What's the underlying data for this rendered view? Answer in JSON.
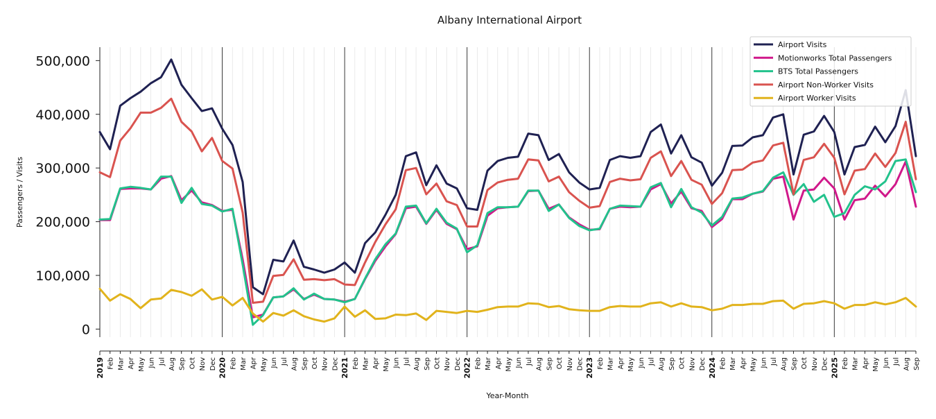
{
  "chart_data": {
    "type": "line",
    "title": "Albany International Airport",
    "xlabel": "Year-Month",
    "ylabel": "Passengers / Visits",
    "ylim": [
      -15000,
      525000
    ],
    "y_ticks": [
      0,
      100000,
      200000,
      300000,
      400000,
      500000
    ],
    "y_tick_labels": [
      "0",
      "100,000",
      "200,000",
      "300,000",
      "400,000",
      "500,000"
    ],
    "legend_position": "top-right",
    "grid": "vertical monthly gridlines, darker lines at year starts",
    "x": [
      "2019-01",
      "2019-02",
      "2019-03",
      "2019-04",
      "2019-05",
      "2019-06",
      "2019-07",
      "2019-08",
      "2019-09",
      "2019-10",
      "2019-11",
      "2019-12",
      "2020-01",
      "2020-02",
      "2020-03",
      "2020-04",
      "2020-05",
      "2020-06",
      "2020-07",
      "2020-08",
      "2020-09",
      "2020-10",
      "2020-11",
      "2020-12",
      "2021-01",
      "2021-02",
      "2021-03",
      "2021-04",
      "2021-05",
      "2021-06",
      "2021-07",
      "2021-08",
      "2021-09",
      "2021-10",
      "2021-11",
      "2021-12",
      "2022-01",
      "2022-02",
      "2022-03",
      "2022-04",
      "2022-05",
      "2022-06",
      "2022-07",
      "2022-08",
      "2022-09",
      "2022-10",
      "2022-11",
      "2022-12",
      "2023-01",
      "2023-02",
      "2023-03",
      "2023-04",
      "2023-05",
      "2023-06",
      "2023-07",
      "2023-08",
      "2023-09",
      "2023-10",
      "2023-11",
      "2023-12",
      "2024-01",
      "2024-02",
      "2024-03",
      "2024-04",
      "2024-05",
      "2024-06",
      "2024-07",
      "2024-08",
      "2024-09",
      "2024-10",
      "2024-11",
      "2024-12",
      "2025-01",
      "2025-02",
      "2025-03",
      "2025-04",
      "2025-05",
      "2025-06",
      "2025-07",
      "2025-08",
      "2025-09"
    ],
    "tick_labels": [
      "2019",
      "Feb",
      "Mar",
      "Apr",
      "May",
      "Jun",
      "Jul",
      "Aug",
      "Sep",
      "Oct",
      "Nov",
      "Dec",
      "2020",
      "Feb",
      "Mar",
      "Apr",
      "May",
      "Jun",
      "Jul",
      "Aug",
      "Sep",
      "Oct",
      "Nov",
      "Dec",
      "2021",
      "Feb",
      "Mar",
      "Apr",
      "May",
      "Jun",
      "Jul",
      "Aug",
      "Sep",
      "Oct",
      "Nov",
      "Dec",
      "2022",
      "Feb",
      "Mar",
      "Apr",
      "May",
      "Jun",
      "Jul",
      "Aug",
      "Sep",
      "Oct",
      "Nov",
      "Dec",
      "2023",
      "Feb",
      "Mar",
      "Apr",
      "May",
      "Jun",
      "Jul",
      "Aug",
      "Sep",
      "Oct",
      "Nov",
      "Dec",
      "2024",
      "Feb",
      "Mar",
      "Apr",
      "May",
      "Jun",
      "Jul",
      "Aug",
      "Sep",
      "Oct",
      "Nov",
      "Dec",
      "2025",
      "Feb",
      "Mar",
      "Apr",
      "May",
      "Jun",
      "Jul",
      "Aug",
      "Sep"
    ],
    "series": [
      {
        "name": "Airport Visits",
        "color": "#1f2152",
        "values": [
          367000,
          335000,
          416000,
          430000,
          442000,
          458000,
          469000,
          502000,
          455000,
          430000,
          406000,
          411000,
          373000,
          343000,
          274000,
          78000,
          65000,
          129000,
          126000,
          165000,
          116000,
          111000,
          105000,
          111000,
          124000,
          105000,
          160000,
          180000,
          213000,
          250000,
          322000,
          329000,
          268000,
          305000,
          271000,
          262000,
          225000,
          222000,
          295000,
          313000,
          319000,
          321000,
          364000,
          361000,
          315000,
          326000,
          292000,
          273000,
          260000,
          263000,
          315000,
          322000,
          319000,
          322000,
          367000,
          381000,
          327000,
          361000,
          320000,
          310000,
          267000,
          291000,
          341000,
          342000,
          357000,
          361000,
          394000,
          400000,
          288000,
          362000,
          368000,
          397000,
          367000,
          288000,
          339000,
          343000,
          377000,
          348000,
          378000,
          445000,
          322000
        ]
      },
      {
        "name": "Motionworks Total Passengers",
        "color": "#d0188a",
        "values": [
          203000,
          203000,
          261000,
          262000,
          262000,
          260000,
          280000,
          285000,
          240000,
          258000,
          236000,
          231000,
          220000,
          222000,
          130000,
          22000,
          27000,
          59000,
          61000,
          74000,
          56000,
          64000,
          56000,
          55000,
          51000,
          56000,
          93000,
          127000,
          154000,
          177000,
          225000,
          228000,
          196000,
          222000,
          196000,
          186000,
          149000,
          154000,
          211000,
          225000,
          227000,
          228000,
          257000,
          258000,
          224000,
          232000,
          208000,
          195000,
          185000,
          186000,
          224000,
          228000,
          227000,
          228000,
          260000,
          270000,
          234000,
          256000,
          225000,
          220000,
          190000,
          205000,
          242000,
          242000,
          252000,
          256000,
          280000,
          284000,
          204000,
          258000,
          260000,
          282000,
          262000,
          204000,
          240000,
          243000,
          267000,
          247000,
          270000,
          312000,
          228000
        ]
      },
      {
        "name": "BTS Total Passengers",
        "color": "#22c28c",
        "values": [
          204000,
          205000,
          262000,
          265000,
          263000,
          260000,
          284000,
          284000,
          235000,
          263000,
          233000,
          230000,
          219000,
          224000,
          120000,
          8000,
          26000,
          59000,
          61000,
          76000,
          55000,
          66000,
          56000,
          55000,
          50000,
          56000,
          94000,
          130000,
          158000,
          178000,
          228000,
          230000,
          197000,
          224000,
          198000,
          187000,
          143000,
          156000,
          216000,
          227000,
          227000,
          228000,
          258000,
          258000,
          220000,
          232000,
          207000,
          192000,
          184000,
          187000,
          224000,
          230000,
          229000,
          228000,
          264000,
          272000,
          227000,
          261000,
          227000,
          217000,
          193000,
          209000,
          243000,
          245000,
          252000,
          257000,
          282000,
          292000,
          250000,
          270000,
          237000,
          250000,
          209000,
          216000,
          250000,
          266000,
          260000,
          275000,
          313000,
          316000,
          255000
        ]
      },
      {
        "name": "Airport Non-Worker Visits",
        "color": "#d9534f",
        "values": [
          292000,
          283000,
          351000,
          374000,
          403000,
          403000,
          412000,
          429000,
          386000,
          368000,
          331000,
          356000,
          313000,
          299000,
          217000,
          49000,
          51000,
          99000,
          101000,
          130000,
          92000,
          93000,
          91000,
          93000,
          83000,
          82000,
          124000,
          162000,
          195000,
          223000,
          296000,
          300000,
          251000,
          271000,
          238000,
          231000,
          191000,
          191000,
          259000,
          273000,
          278000,
          280000,
          316000,
          314000,
          275000,
          284000,
          255000,
          239000,
          226000,
          229000,
          274000,
          280000,
          277000,
          279000,
          319000,
          331000,
          285000,
          313000,
          278000,
          269000,
          233000,
          253000,
          296000,
          297000,
          310000,
          314000,
          342000,
          347000,
          251000,
          315000,
          320000,
          345000,
          319000,
          251000,
          295000,
          298000,
          327000,
          302000,
          328000,
          386000,
          279000
        ]
      },
      {
        "name": "Airport Worker Visits",
        "color": "#e1b31c",
        "values": [
          75000,
          53000,
          65000,
          56000,
          39000,
          55000,
          57000,
          73000,
          69000,
          62000,
          74000,
          55000,
          60000,
          44000,
          58000,
          29000,
          14000,
          30000,
          25000,
          35000,
          24000,
          18000,
          14000,
          20000,
          42000,
          23000,
          35000,
          19000,
          20000,
          27000,
          26000,
          29000,
          17000,
          34000,
          32000,
          30000,
          34000,
          32000,
          36000,
          41000,
          42000,
          42000,
          48000,
          47000,
          41000,
          43000,
          37000,
          35000,
          34000,
          34000,
          41000,
          43000,
          42000,
          42000,
          48000,
          50000,
          42000,
          48000,
          42000,
          41000,
          35000,
          38000,
          45000,
          45000,
          47000,
          47000,
          52000,
          53000,
          38000,
          47000,
          48000,
          52000,
          48000,
          38000,
          45000,
          45000,
          50000,
          46000,
          50000,
          58000,
          42000
        ]
      }
    ]
  }
}
